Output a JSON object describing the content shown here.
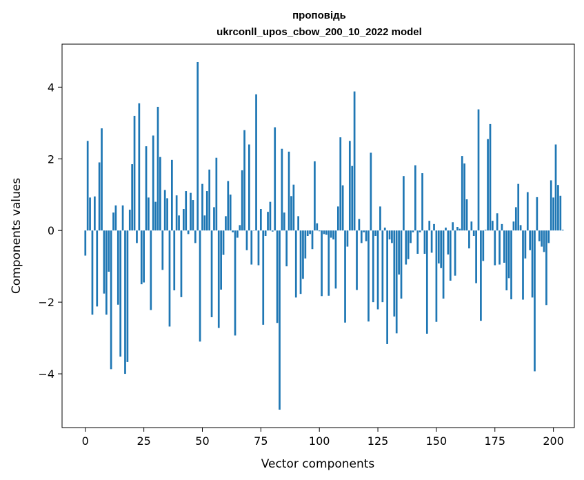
{
  "chart_data": {
    "type": "bar",
    "title_line1": "проповідь",
    "title_line2": "ukrconll_upos_cbow_200_10_2022 model",
    "xlabel": "Vector components",
    "ylabel": "Components values",
    "xlim": [
      -9.95,
      208.95
    ],
    "ylim": [
      -5.5,
      5.2
    ],
    "xticks": [
      0,
      25,
      50,
      75,
      100,
      125,
      150,
      175,
      200
    ],
    "yticks": [
      -4,
      -2,
      0,
      2,
      4
    ],
    "ytick_labels": [
      "−4",
      "−2",
      "0",
      "2",
      "4"
    ],
    "bar_color": "#1f77b4",
    "grid": false,
    "values": [
      -0.7,
      2.5,
      0.92,
      -2.35,
      0.95,
      -2.12,
      1.9,
      2.85,
      -1.76,
      -2.35,
      -1.15,
      -3.87,
      0.5,
      0.7,
      -2.07,
      -3.52,
      0.7,
      -4.0,
      -3.67,
      0.58,
      1.85,
      3.2,
      -0.35,
      3.55,
      -1.5,
      -1.45,
      2.35,
      0.92,
      -2.22,
      2.65,
      0.8,
      3.45,
      2.05,
      -1.1,
      1.13,
      0.9,
      -2.68,
      1.97,
      -1.67,
      0.98,
      0.42,
      -1.86,
      0.6,
      1.1,
      -0.1,
      1.05,
      0.85,
      -0.35,
      4.7,
      -3.1,
      1.3,
      0.42,
      1.1,
      1.7,
      -2.42,
      0.65,
      2.03,
      -2.72,
      -1.65,
      -0.68,
      0.4,
      1.38,
      1.0,
      -0.05,
      -2.93,
      -0.2,
      0.15,
      1.68,
      2.8,
      -0.55,
      2.4,
      -0.95,
      0.0,
      3.8,
      -0.97,
      0.6,
      -2.63,
      -0.15,
      0.52,
      0.8,
      -0.03,
      2.88,
      -2.58,
      -5.0,
      2.28,
      0.5,
      -1.0,
      2.2,
      0.96,
      1.28,
      -1.87,
      0.4,
      -1.77,
      -1.35,
      -0.78,
      -0.15,
      -0.1,
      -0.52,
      1.93,
      0.2,
      -0.02,
      -1.83,
      -0.1,
      -0.12,
      -1.82,
      -0.2,
      -0.25,
      -1.62,
      0.67,
      2.6,
      1.26,
      -2.57,
      -0.45,
      2.5,
      1.8,
      3.88,
      -1.66,
      0.32,
      -0.35,
      -0.05,
      -0.3,
      -2.54,
      2.17,
      -2.0,
      -0.15,
      -2.2,
      0.67,
      -2.0,
      0.08,
      -3.17,
      -0.25,
      -0.35,
      -2.4,
      -2.87,
      -1.23,
      -1.9,
      1.52,
      -0.95,
      -0.8,
      -0.35,
      -0.05,
      1.82,
      -0.65,
      -0.05,
      1.6,
      -0.65,
      -2.88,
      0.27,
      -0.62,
      0.18,
      -2.55,
      -0.92,
      -1.05,
      -1.9,
      0.08,
      -0.67,
      -1.4,
      0.23,
      -1.26,
      0.1,
      0.05,
      2.08,
      1.87,
      0.87,
      -0.5,
      0.25,
      -0.15,
      -1.47,
      3.38,
      -2.52,
      -0.85,
      0.02,
      2.55,
      2.97,
      0.27,
      -0.97,
      0.48,
      -0.95,
      0.18,
      -0.9,
      -1.67,
      -1.33,
      -1.92,
      0.25,
      0.65,
      1.3,
      0.15,
      -1.93,
      -0.78,
      1.07,
      -0.55,
      -1.87,
      -3.93,
      0.93,
      -0.3,
      -0.45,
      -0.6,
      -2.08,
      -0.35,
      1.4,
      0.92,
      2.4,
      1.27,
      0.97,
      0.02
    ]
  }
}
